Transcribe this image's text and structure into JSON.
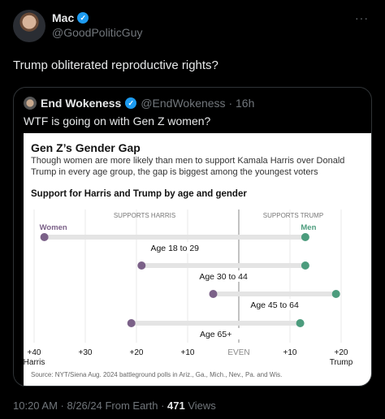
{
  "post": {
    "author_name": "Mac",
    "author_handle": "@GoodPoliticGuy",
    "text": "Trump obliterated reproductive rights?",
    "more_label": "···",
    "time": "10:20 AM · 8/26/24 From Earth · ",
    "views_count": "471",
    "views_label": " Views"
  },
  "quote": {
    "author_name": "End Wokeness",
    "author_handle": "@EndWokeness · 16h",
    "text": "WTF is going on with Gen Z women?"
  },
  "graphic": {
    "title": "Gen Z’s Gender Gap",
    "subtitle": "Though women are more likely than men to support Kamala Harris over Donald Trump in every age group, the gap is biggest among the youngest voters",
    "chart_title": "Support for Harris and Trump by age and gender",
    "source": "Source: NYT/Siena Aug. 2024 battleground polls in Ariz., Ga., Mich., Nev., Pa. and Wis."
  },
  "chart_data": {
    "type": "dumbbell",
    "x_scale": "margin (Harris left, Trump right)",
    "xlim": [
      -40,
      20
    ],
    "section_labels": [
      "SUPPORTS HARRIS",
      "SUPPORTS TRUMP"
    ],
    "legend": [
      "Women",
      "Men"
    ],
    "ticks": [
      {
        "value": -40,
        "label": "+40",
        "sub": "Harris"
      },
      {
        "value": -30,
        "label": "+30",
        "sub": ""
      },
      {
        "value": -20,
        "label": "+20",
        "sub": ""
      },
      {
        "value": -10,
        "label": "+10",
        "sub": ""
      },
      {
        "value": 0,
        "label": "EVEN",
        "sub": ""
      },
      {
        "value": 10,
        "label": "+10",
        "sub": ""
      },
      {
        "value": 20,
        "label": "+20",
        "sub": "Trump"
      }
    ],
    "rows": [
      {
        "label": "Age 18 to 29",
        "women": -38,
        "men": 13
      },
      {
        "label": "Age 30 to 44",
        "women": -19,
        "men": 13
      },
      {
        "label": "Age 45 to 64",
        "women": -5,
        "men": 19
      },
      {
        "label": "Age 65+",
        "women": -21,
        "men": 12
      }
    ],
    "colors": {
      "women": "#7b6188",
      "men": "#4c9c7d",
      "bar": "#e4e4e4",
      "grid": "#e8e8e8",
      "zero": "#999999"
    }
  }
}
